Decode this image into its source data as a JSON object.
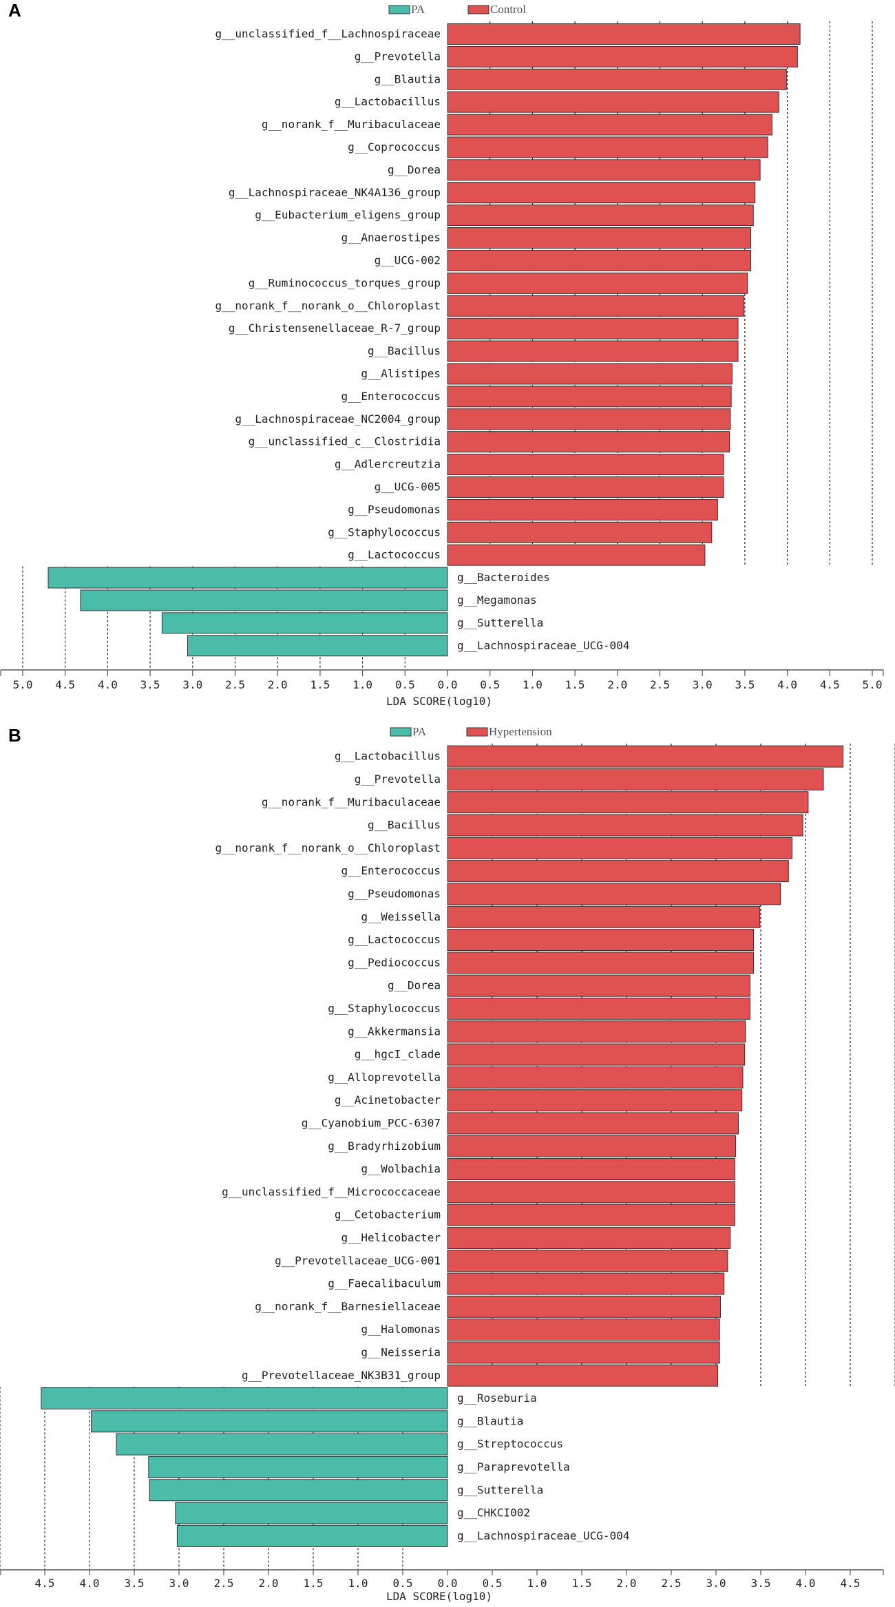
{
  "chart_data": [
    {
      "type": "bar",
      "panel": "A",
      "legend": [
        {
          "name": "PA",
          "color": "#4bbcaa"
        },
        {
          "name": "Control",
          "color": "#e05252"
        }
      ],
      "xlabel": "LDA SCORE(log10)",
      "xlim": [
        -5.0,
        5.0
      ],
      "xticks": [
        "5.0",
        "4.5",
        "4.0",
        "3.5",
        "3.0",
        "2.5",
        "2.0",
        "1.5",
        "1.0",
        "0.5",
        "0.0",
        "0.5",
        "1.0",
        "1.5",
        "2.0",
        "2.5",
        "3.0",
        "3.5",
        "4.0",
        "4.5",
        "5.0"
      ],
      "series": [
        {
          "name": "Control",
          "color": "#e05252",
          "categories": [
            "g__unclassified_f__Lachnospiraceae",
            "g__Prevotella",
            "g__Blautia",
            "g__Lactobacillus",
            "g__norank_f__Muribaculaceae",
            "g__Coprococcus",
            "g__Dorea",
            "g__Lachnospiraceae_NK4A136_group",
            "g__Eubacterium_eligens_group",
            "g__Anaerostipes",
            "g__UCG-002",
            "g__Ruminococcus_torques_group",
            "g__norank_f__norank_o__Chloroplast",
            "g__Christensenellaceae_R-7_group",
            "g__Bacillus",
            "g__Alistipes",
            "g__Enterococcus",
            "g__Lachnospiraceae_NC2004_group",
            "g__unclassified_c__Clostridia",
            "g__Adlercreutzia",
            "g__UCG-005",
            "g__Pseudomonas",
            "g__Staphylococcus",
            "g__Lactococcus"
          ],
          "values": [
            4.15,
            4.12,
            3.99,
            3.9,
            3.82,
            3.77,
            3.68,
            3.62,
            3.6,
            3.57,
            3.57,
            3.53,
            3.49,
            3.42,
            3.42,
            3.35,
            3.34,
            3.33,
            3.32,
            3.25,
            3.25,
            3.18,
            3.11,
            3.03
          ]
        },
        {
          "name": "PA",
          "color": "#4bbcaa",
          "categories": [
            "g__Bacteroides",
            "g__Megamonas",
            "g__Sutterella",
            "g__Lachnospiraceae_UCG-004"
          ],
          "values": [
            4.7,
            4.32,
            3.36,
            3.06
          ]
        }
      ]
    },
    {
      "type": "bar",
      "panel": "B",
      "legend": [
        {
          "name": "PA",
          "color": "#4bbcaa"
        },
        {
          "name": "Hypertension",
          "color": "#e05252"
        }
      ],
      "xlabel": "LDA SCORE(log10)",
      "xlim": [
        -5.0,
        5.0
      ],
      "xticks": [
        "4.5",
        "4.0",
        "3.5",
        "3.0",
        "2.5",
        "2.0",
        "1.5",
        "1.0",
        "0.5",
        "0.0",
        "0.5",
        "1.0",
        "1.5",
        "2.0",
        "2.5",
        "3.0",
        "3.5",
        "4.0",
        "4.5"
      ],
      "series": [
        {
          "name": "Hypertension",
          "color": "#e05252",
          "categories": [
            "g__Lactobacillus",
            "g__Prevotella",
            "g__norank_f__Muribaculaceae",
            "g__Bacillus",
            "g__norank_f__norank_o__Chloroplast",
            "g__Enterococcus",
            "g__Pseudomonas",
            "g__Weissella",
            "g__Lactococcus",
            "g__Pediococcus",
            "g__Dorea",
            "g__Staphylococcus",
            "g__Akkermansia",
            "g__hgcI_clade",
            "g__Alloprevotella",
            "g__Acinetobacter",
            "g__Cyanobium_PCC-6307",
            "g__Bradyrhizobium",
            "g__Wolbachia",
            "g__unclassified_f__Micrococcaceae",
            "g__Cetobacterium",
            "g__Helicobacter",
            "g__Prevotellaceae_UCG-001",
            "g__Faecalibaculum",
            "g__norank_f__Barnesiellaceae",
            "g__Halomonas",
            "g__Neisseria",
            "g__Prevotellaceae_NK3B31_group"
          ],
          "values": [
            4.42,
            4.2,
            4.03,
            3.97,
            3.85,
            3.81,
            3.72,
            3.49,
            3.42,
            3.42,
            3.38,
            3.38,
            3.33,
            3.32,
            3.3,
            3.29,
            3.25,
            3.22,
            3.21,
            3.21,
            3.21,
            3.16,
            3.13,
            3.09,
            3.05,
            3.04,
            3.04,
            3.02
          ]
        },
        {
          "name": "PA",
          "color": "#4bbcaa",
          "categories": [
            "g__Roseburia",
            "g__Blautia",
            "g__Streptococcus",
            "g__Paraprevotella",
            "g__Sutterella",
            "g__CHKCI002",
            "g__Lachnospiraceae_UCG-004"
          ],
          "values": [
            4.54,
            3.98,
            3.7,
            3.34,
            3.33,
            3.04,
            3.02
          ]
        }
      ]
    }
  ]
}
